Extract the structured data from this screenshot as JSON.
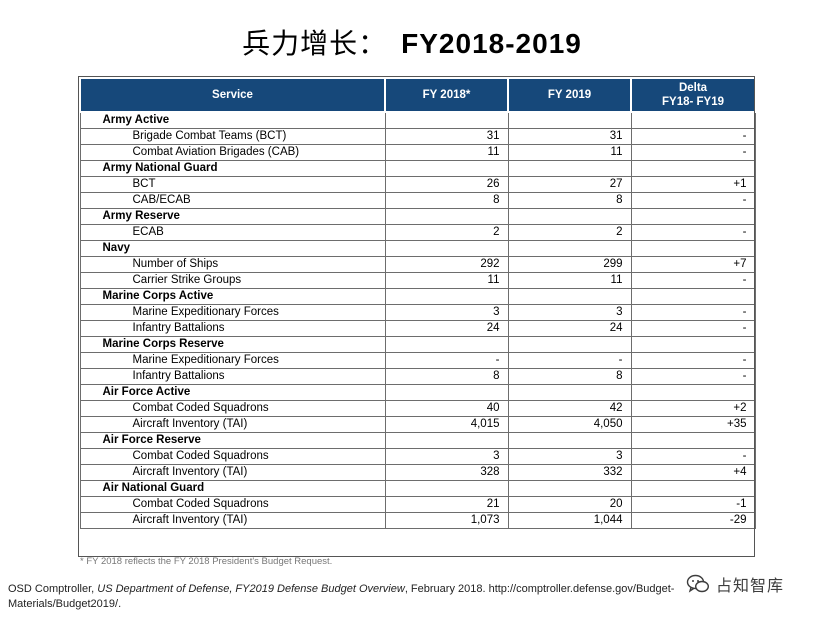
{
  "title": {
    "zh": "兵力增长：",
    "en": "FY2018-2019"
  },
  "table": {
    "headers": {
      "service": "Service",
      "fy2018": "FY 2018*",
      "fy2019": "FY 2019",
      "delta_line1": "Delta",
      "delta_line2": "FY18- FY19"
    },
    "rows": [
      {
        "type": "cat",
        "label": "Army Active",
        "fy2018": "",
        "fy2019": "",
        "delta": ""
      },
      {
        "type": "item",
        "label": "Brigade Combat Teams (BCT)",
        "fy2018": "31",
        "fy2019": "31",
        "delta": "-"
      },
      {
        "type": "item",
        "label": "Combat Aviation Brigades (CAB)",
        "fy2018": "11",
        "fy2019": "11",
        "delta": "-"
      },
      {
        "type": "cat",
        "label": "Army National Guard",
        "fy2018": "",
        "fy2019": "",
        "delta": ""
      },
      {
        "type": "item",
        "label": "BCT",
        "fy2018": "26",
        "fy2019": "27",
        "delta": "+1"
      },
      {
        "type": "item",
        "label": "CAB/ECAB",
        "fy2018": "8",
        "fy2019": "8",
        "delta": "-"
      },
      {
        "type": "cat",
        "label": "Army Reserve",
        "fy2018": "",
        "fy2019": "",
        "delta": ""
      },
      {
        "type": "item",
        "label": "ECAB",
        "fy2018": "2",
        "fy2019": "2",
        "delta": "-"
      },
      {
        "type": "cat",
        "label": "Navy",
        "fy2018": "",
        "fy2019": "",
        "delta": ""
      },
      {
        "type": "item",
        "label": "Number of Ships",
        "fy2018": "292",
        "fy2019": "299",
        "delta": "+7"
      },
      {
        "type": "item",
        "label": "Carrier Strike Groups",
        "fy2018": "11",
        "fy2019": "11",
        "delta": "-"
      },
      {
        "type": "cat",
        "label": "Marine Corps Active",
        "fy2018": "",
        "fy2019": "",
        "delta": ""
      },
      {
        "type": "item",
        "label": "Marine Expeditionary Forces",
        "fy2018": "3",
        "fy2019": "3",
        "delta": "-"
      },
      {
        "type": "item",
        "label": "Infantry Battalions",
        "fy2018": "24",
        "fy2019": "24",
        "delta": "-"
      },
      {
        "type": "cat",
        "label": "Marine Corps Reserve",
        "fy2018": "",
        "fy2019": "",
        "delta": ""
      },
      {
        "type": "item",
        "label": "Marine Expeditionary Forces",
        "fy2018": "-",
        "fy2019": "-",
        "delta": "-"
      },
      {
        "type": "item",
        "label": "Infantry Battalions",
        "fy2018": "8",
        "fy2019": "8",
        "delta": "-"
      },
      {
        "type": "cat",
        "label": "Air Force Active",
        "fy2018": "",
        "fy2019": "",
        "delta": ""
      },
      {
        "type": "item",
        "label": "Combat Coded Squadrons",
        "fy2018": "40",
        "fy2019": "42",
        "delta": "+2"
      },
      {
        "type": "item",
        "label": "Aircraft Inventory (TAI)",
        "fy2018": "4,015",
        "fy2019": "4,050",
        "delta": "+35"
      },
      {
        "type": "cat",
        "label": "Air Force Reserve",
        "fy2018": "",
        "fy2019": "",
        "delta": ""
      },
      {
        "type": "item",
        "label": "Combat Coded Squadrons",
        "fy2018": "3",
        "fy2019": "3",
        "delta": "-"
      },
      {
        "type": "item",
        "label": "Aircraft Inventory (TAI)",
        "fy2018": "328",
        "fy2019": "332",
        "delta": "+4"
      },
      {
        "type": "cat",
        "label": "Air National Guard",
        "fy2018": "",
        "fy2019": "",
        "delta": ""
      },
      {
        "type": "item",
        "label": "Combat Coded Squadrons",
        "fy2018": "21",
        "fy2019": "20",
        "delta": "-1"
      },
      {
        "type": "item",
        "label": "Aircraft Inventory (TAI)",
        "fy2018": "1,073",
        "fy2019": "1,044",
        "delta": "-29"
      }
    ]
  },
  "footnote": "* FY 2018 reflects the FY 2018 President's Budget Request.",
  "source": {
    "prefix": "OSD Comptroller, ",
    "italic": "US Department of Defense, FY2019 Defense Budget Overview",
    "suffix": ", February 2018. http://comptroller.defense.gov/Budget-Materials/Budget2019/."
  },
  "watermark": {
    "text": "占知智库",
    "icon": "wechat-icon"
  }
}
